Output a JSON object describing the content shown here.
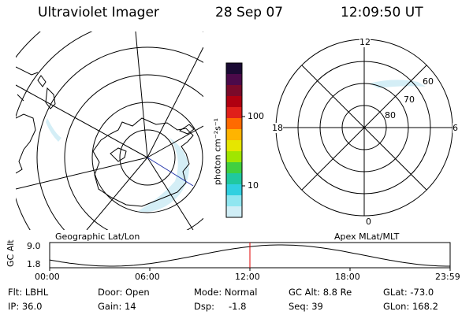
{
  "header": {
    "title": "Ultraviolet Imager",
    "date": "28 Sep 07",
    "time": "12:09:50 UT"
  },
  "geo_panel": {
    "label": "Geographic Lat/Lon"
  },
  "mag_panel": {
    "label": "Apex MLat/MLT",
    "mlt_labels": [
      "12",
      "18",
      "6",
      "0"
    ],
    "lat_labels": [
      "60",
      "70",
      "80"
    ]
  },
  "colorbar": {
    "unit_label": "photon cm⁻²s⁻¹",
    "ticks": [
      "100",
      "10"
    ],
    "colors": [
      "#1a0a33",
      "#4b0a4a",
      "#7a0a2a",
      "#b00010",
      "#e0201a",
      "#ff6a00",
      "#ffb400",
      "#e6e600",
      "#a0e600",
      "#40d040",
      "#20c8a0",
      "#30d0e0",
      "#90e6f0",
      "#d0eef6"
    ]
  },
  "timeline": {
    "axis_label": "GC Alt",
    "y_ticks": [
      "9.0",
      "1.8"
    ],
    "x_ticks": [
      "00:00",
      "06:00",
      "12:00",
      "18:00",
      "23:59"
    ],
    "marker_color": "#e00000"
  },
  "info": {
    "filter": "Flt: LBHL",
    "ip": "IP: 36.0",
    "door": "Door: Open",
    "gain": "Gain: 14",
    "mode": "Mode: Normal",
    "dsp_label": "Dsp:",
    "dsp_value": "-1.8",
    "gc_alt": "GC Alt: 8.8 Re",
    "seq": "Seq: 39",
    "glat": "GLat: -73.0",
    "glon": "GLon: 168.2"
  }
}
